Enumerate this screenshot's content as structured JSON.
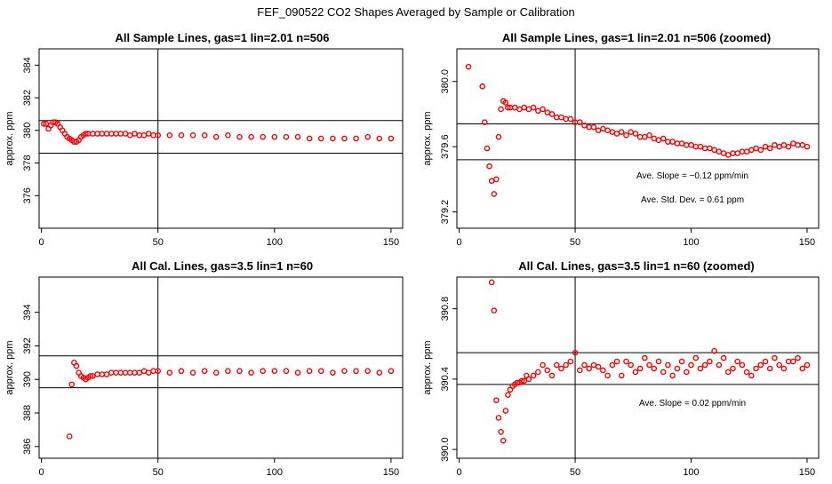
{
  "suptitle": "FEF_090522  CO2 Shapes Averaged by Sample or Calibration",
  "colors": {
    "points": "#ff0000",
    "lines": "#000000"
  },
  "chart_data": [
    {
      "type": "scatter",
      "title": "All Sample Lines, gas=1 lin=2.01 n=506",
      "ylabel": "approx. ppm",
      "xlabel": "",
      "xlim": [
        -1,
        155
      ],
      "ylim": [
        374,
        385
      ],
      "xticks": [
        0,
        50,
        100,
        150
      ],
      "yticks": [
        376,
        378,
        380,
        382,
        384
      ],
      "hlines": [
        380.6,
        378.6
      ],
      "vline": 50,
      "annotations": [],
      "x": [
        1,
        2,
        3,
        4,
        5,
        6,
        7,
        8,
        9,
        10,
        11,
        12,
        13,
        14,
        15,
        16,
        17,
        18,
        19,
        20,
        22,
        24,
        26,
        28,
        30,
        32,
        34,
        36,
        38,
        40,
        42,
        44,
        46,
        48,
        50,
        55,
        60,
        65,
        70,
        75,
        80,
        85,
        90,
        95,
        100,
        105,
        110,
        115,
        120,
        125,
        130,
        135,
        140,
        145,
        150
      ],
      "y": [
        380.4,
        380.4,
        380.1,
        380.3,
        380.5,
        380.5,
        380.4,
        380.2,
        380.0,
        379.8,
        379.6,
        379.5,
        379.4,
        379.3,
        379.3,
        379.4,
        379.6,
        379.7,
        379.8,
        379.8,
        379.8,
        379.8,
        379.8,
        379.8,
        379.8,
        379.8,
        379.8,
        379.8,
        379.7,
        379.8,
        379.7,
        379.7,
        379.8,
        379.7,
        379.7,
        379.7,
        379.7,
        379.7,
        379.7,
        379.6,
        379.7,
        379.6,
        379.6,
        379.6,
        379.6,
        379.6,
        379.6,
        379.5,
        379.5,
        379.5,
        379.5,
        379.5,
        379.6,
        379.5,
        379.5
      ]
    },
    {
      "type": "scatter",
      "title": "All Sample Lines, gas=1 lin=2.01 n=506 (zoomed)",
      "ylabel": "approx. ppm",
      "xlabel": "",
      "xlim": [
        -1,
        155
      ],
      "ylim": [
        379.1,
        380.2
      ],
      "xticks": [
        0,
        50,
        100,
        150
      ],
      "yticks": [
        379.2,
        379.6,
        380.0
      ],
      "ytick_labels": [
        "379.2",
        "379.6",
        "380.0"
      ],
      "hlines": [
        379.74,
        379.52
      ],
      "vline": 50,
      "annotations": [
        "Ave. Slope = −0.12  ppm/min",
        "Ave. Std. Dev. =  0.61  ppm"
      ],
      "x": [
        4,
        10,
        11,
        12,
        13,
        14,
        15,
        16,
        17,
        18,
        19,
        20,
        21,
        22,
        24,
        26,
        28,
        30,
        32,
        34,
        36,
        38,
        40,
        42,
        44,
        46,
        48,
        50,
        52,
        54,
        56,
        58,
        60,
        62,
        64,
        66,
        68,
        70,
        72,
        74,
        76,
        78,
        80,
        82,
        84,
        86,
        88,
        90,
        92,
        94,
        96,
        98,
        100,
        102,
        104,
        106,
        108,
        110,
        112,
        114,
        116,
        118,
        120,
        122,
        124,
        126,
        128,
        130,
        132,
        134,
        136,
        138,
        140,
        142,
        144,
        146,
        148,
        150
      ],
      "y": [
        380.09,
        379.97,
        379.75,
        379.59,
        379.48,
        379.39,
        379.31,
        379.4,
        379.66,
        379.83,
        379.88,
        379.87,
        379.84,
        379.84,
        379.84,
        379.83,
        379.84,
        379.83,
        379.84,
        379.82,
        379.83,
        379.81,
        379.8,
        379.78,
        379.78,
        379.77,
        379.77,
        379.75,
        379.75,
        379.73,
        379.72,
        379.72,
        379.7,
        379.71,
        379.7,
        379.69,
        379.68,
        379.69,
        379.67,
        379.69,
        379.68,
        379.66,
        379.66,
        379.67,
        379.65,
        379.64,
        379.65,
        379.63,
        379.63,
        379.62,
        379.62,
        379.61,
        379.61,
        379.6,
        379.6,
        379.59,
        379.59,
        379.58,
        379.57,
        379.56,
        379.55,
        379.56,
        379.56,
        379.57,
        379.57,
        379.58,
        379.59,
        379.58,
        379.6,
        379.59,
        379.61,
        379.6,
        379.61,
        379.6,
        379.62,
        379.61,
        379.61,
        379.6
      ]
    },
    {
      "type": "scatter",
      "title": "All Cal. Lines, gas=3.5 lin=1 n=60",
      "ylabel": "approx. ppm",
      "xlabel": "",
      "xlim": [
        -1,
        155
      ],
      "ylim": [
        385.3,
        396.1
      ],
      "xticks": [
        0,
        50,
        100,
        150
      ],
      "yticks": [
        386,
        388,
        390,
        392,
        394
      ],
      "hlines": [
        391.4,
        389.5
      ],
      "vline": 50,
      "annotations": [],
      "x": [
        12,
        13,
        14,
        15,
        16,
        17,
        18,
        19,
        20,
        21,
        22,
        24,
        26,
        28,
        30,
        32,
        34,
        36,
        38,
        40,
        42,
        44,
        46,
        48,
        50,
        55,
        60,
        65,
        70,
        75,
        80,
        85,
        90,
        95,
        100,
        105,
        110,
        115,
        120,
        125,
        130,
        135,
        140,
        145,
        150
      ],
      "y": [
        386.6,
        389.7,
        391.0,
        390.8,
        390.4,
        390.2,
        390.1,
        390.0,
        390.1,
        390.2,
        390.2,
        390.3,
        390.3,
        390.3,
        390.4,
        390.4,
        390.4,
        390.4,
        390.4,
        390.4,
        390.4,
        390.5,
        390.4,
        390.5,
        390.5,
        390.4,
        390.5,
        390.4,
        390.5,
        390.4,
        390.5,
        390.5,
        390.4,
        390.5,
        390.5,
        390.5,
        390.4,
        390.5,
        390.5,
        390.4,
        390.5,
        390.5,
        390.5,
        390.4,
        390.5
      ]
    },
    {
      "type": "scatter",
      "title": "All Cal. Lines, gas=3.5 lin=1 n=60 (zoomed)",
      "ylabel": "approx. ppm",
      "xlabel": "",
      "xlim": [
        -1,
        155
      ],
      "ylim": [
        389.95,
        390.98
      ],
      "xticks": [
        0,
        50,
        100,
        150
      ],
      "yticks": [
        390.0,
        390.4,
        390.8
      ],
      "ytick_labels": [
        "390.0",
        "390.4",
        "390.8"
      ],
      "hlines": [
        390.55,
        390.37
      ],
      "vline": 50,
      "annotations": [
        "Ave. Slope =  0.02  ppm/min"
      ],
      "x": [
        14,
        15,
        16,
        17,
        18,
        19,
        20,
        21,
        22,
        23,
        24,
        25,
        26,
        27,
        28,
        29,
        30,
        32,
        34,
        36,
        38,
        40,
        42,
        44,
        46,
        48,
        50,
        52,
        54,
        56,
        58,
        60,
        62,
        64,
        66,
        68,
        70,
        72,
        74,
        76,
        78,
        80,
        82,
        84,
        86,
        88,
        90,
        92,
        94,
        96,
        98,
        100,
        102,
        104,
        106,
        108,
        110,
        112,
        114,
        116,
        118,
        120,
        122,
        124,
        126,
        128,
        130,
        132,
        134,
        136,
        138,
        140,
        142,
        144,
        146,
        148,
        150
      ],
      "y": [
        390.95,
        390.79,
        390.28,
        390.18,
        390.1,
        390.05,
        390.22,
        390.31,
        390.34,
        390.36,
        390.37,
        390.38,
        390.38,
        390.39,
        390.39,
        390.42,
        390.4,
        390.42,
        390.44,
        390.48,
        390.45,
        390.42,
        390.48,
        390.46,
        390.48,
        390.5,
        390.55,
        390.45,
        390.48,
        390.46,
        390.48,
        390.47,
        390.45,
        390.42,
        390.48,
        390.5,
        390.42,
        390.5,
        390.48,
        390.44,
        390.46,
        390.52,
        390.48,
        390.46,
        390.5,
        390.44,
        390.48,
        390.42,
        390.46,
        390.5,
        390.44,
        390.48,
        390.52,
        390.46,
        390.48,
        390.5,
        390.56,
        390.48,
        390.52,
        390.44,
        390.46,
        390.5,
        390.48,
        390.44,
        390.42,
        390.46,
        390.48,
        390.5,
        390.46,
        390.52,
        390.48,
        390.46,
        390.5,
        390.5,
        390.52,
        390.46,
        390.48
      ]
    }
  ]
}
